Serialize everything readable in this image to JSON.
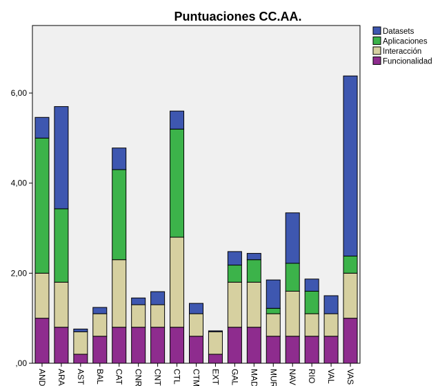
{
  "chart_data": {
    "type": "bar",
    "stacked": true,
    "title": "Puntuaciones CC.AA.",
    "xlabel": "",
    "ylabel": "",
    "ylim": [
      0,
      7.5
    ],
    "yticks": [
      0,
      2,
      4,
      6
    ],
    "ytick_labels": [
      ",00",
      "2,00",
      "4,00",
      "6,00"
    ],
    "grid": false,
    "legend_position": "top-right",
    "plot_background": "#f0f0f0",
    "categories": [
      "AND",
      "ARA",
      "AST",
      "BAL",
      "CAT",
      "CNR",
      "CNT",
      "CTL",
      "CTM",
      "EXT",
      "GAL",
      "MAD",
      "MUR",
      "NAV",
      "RIO",
      "VAL",
      "VAS"
    ],
    "series": [
      {
        "name": "Funcionalidad",
        "color": "#8e2c8e",
        "values": [
          1.0,
          0.8,
          0.2,
          0.6,
          0.8,
          0.8,
          0.8,
          0.8,
          0.6,
          0.2,
          0.8,
          0.8,
          0.6,
          0.6,
          0.6,
          0.6,
          1.0
        ]
      },
      {
        "name": "Interacción",
        "color": "#d6d0a0",
        "values": [
          1.0,
          1.0,
          0.5,
          0.5,
          1.5,
          0.5,
          0.5,
          2.0,
          0.5,
          0.5,
          1.0,
          1.0,
          0.5,
          1.0,
          0.5,
          0.5,
          1.0
        ]
      },
      {
        "name": "Aplicaciones",
        "color": "#3cb34a",
        "values": [
          3.0,
          1.63,
          0.0,
          0.0,
          2.0,
          0.0,
          0.0,
          2.4,
          0.0,
          0.0,
          0.38,
          0.5,
          0.12,
          0.62,
          0.5,
          0.0,
          0.38
        ]
      },
      {
        "name": "Datasets",
        "color": "#3e57b0",
        "values": [
          0.46,
          2.27,
          0.06,
          0.14,
          0.48,
          0.15,
          0.29,
          0.4,
          0.23,
          0.02,
          0.3,
          0.14,
          0.63,
          1.12,
          0.27,
          0.4,
          4.0
        ]
      }
    ]
  }
}
